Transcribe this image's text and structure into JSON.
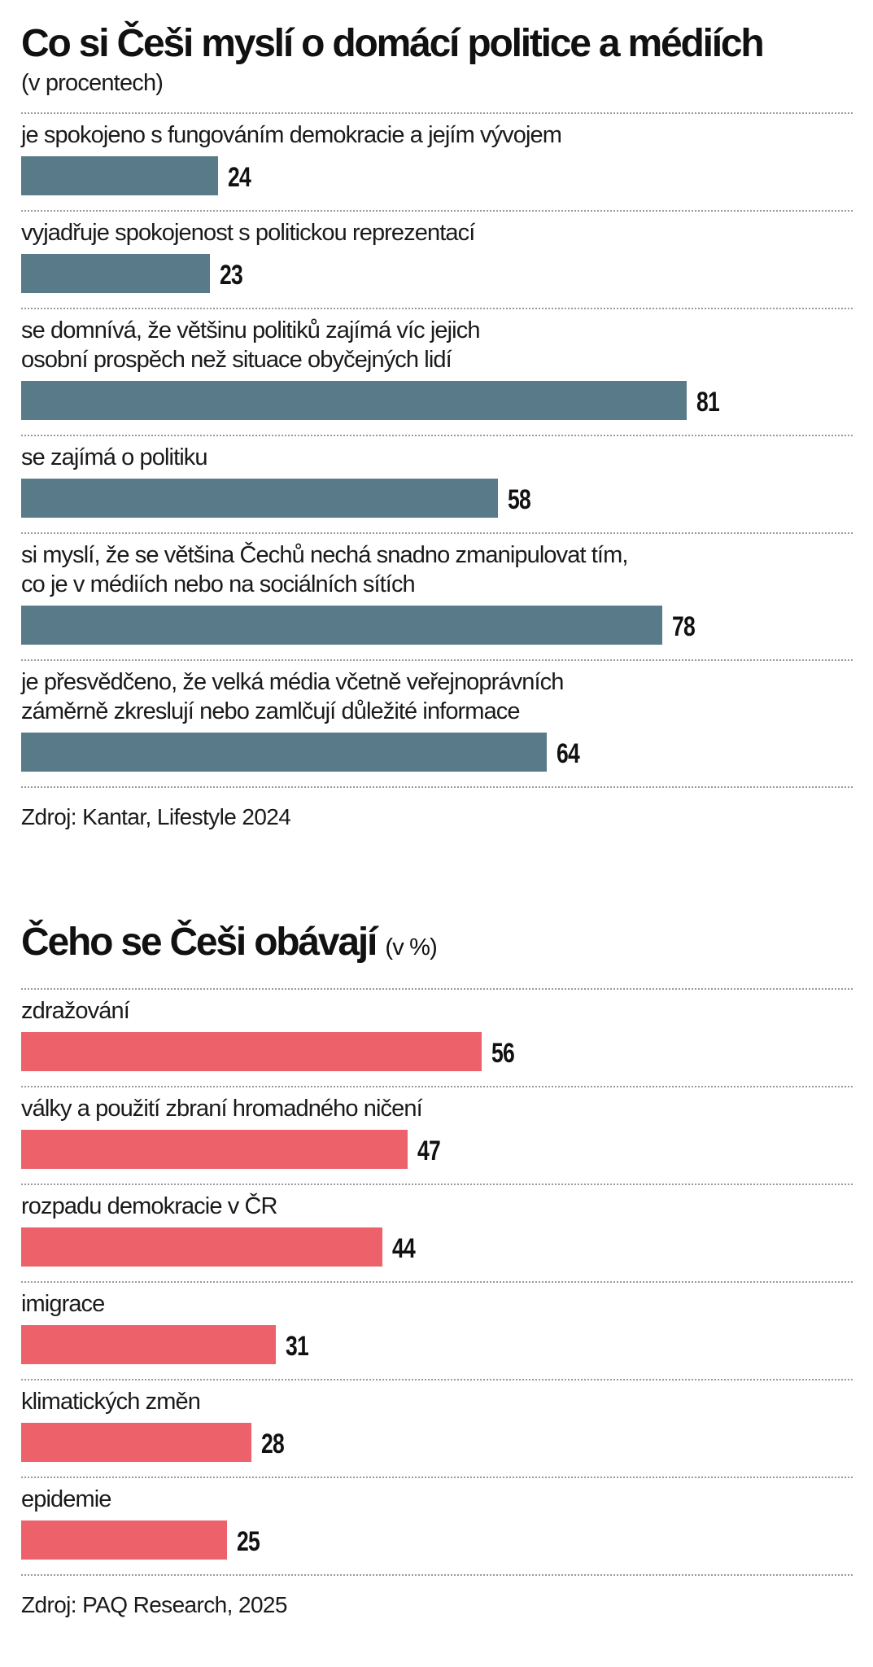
{
  "chart_data": [
    {
      "type": "bar",
      "orientation": "horizontal",
      "title": "Co si Češi myslí o domácí politice a médiích",
      "subtitle": "(v procentech)",
      "categories": [
        "je spokojeno s fungováním demokracie a jejím vývojem",
        "vyjadřuje spokojenost s politickou reprezentací",
        "se domnívá, že většinu politiků zajímá víc jejich\nosobní prospěch než situace obyčejných lidí",
        "se zajímá o politiku",
        "si myslí, že se většina Čechů nechá snadno zmanipulovat tím,\nco je v médiích nebo na sociálních sítích",
        "je přesvědčeno, že velká média včetně veřejnoprávních\nzáměrně zkreslují nebo zamlčují důležité informace"
      ],
      "values": [
        24,
        23,
        81,
        58,
        78,
        64
      ],
      "xlim": [
        0,
        100
      ],
      "bar_color": "#587a89",
      "source": "Zdroj: Kantar, Lifestyle 2024"
    },
    {
      "type": "bar",
      "orientation": "horizontal",
      "title": "Čeho se Češi obávají",
      "subtitle": "(v %)",
      "categories": [
        "zdražování",
        "války a použití zbraní hromadného ničení",
        "rozpadu demokracie v ČR",
        "imigrace",
        "klimatických změn",
        "epidemie"
      ],
      "values": [
        56,
        47,
        44,
        31,
        28,
        25
      ],
      "xlim": [
        0,
        100
      ],
      "bar_color": "#ec616a",
      "source": "Zdroj: PAQ Research, 2025"
    }
  ]
}
